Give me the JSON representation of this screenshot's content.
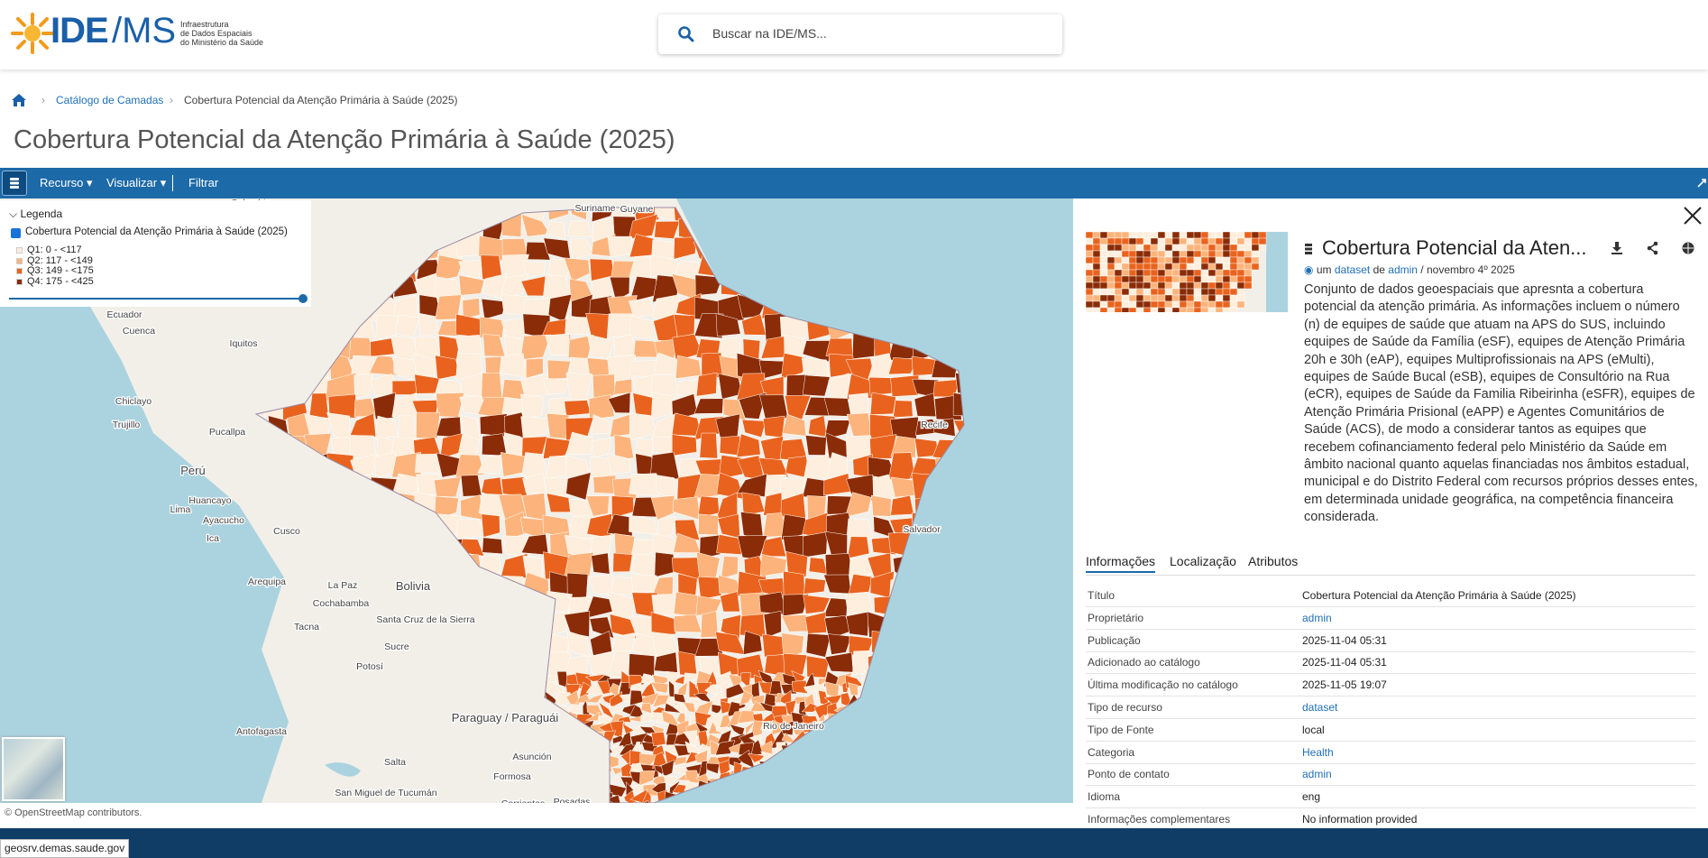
{
  "header": {
    "logo": {
      "main": "IDE",
      "suffix": "/MS",
      "subtitle": [
        "Infraestrutura",
        "de Dados Espaciais",
        "do Ministério da Saúde"
      ]
    },
    "search_placeholder": "Buscar na IDE/MS..."
  },
  "breadcrumb": [
    "Catálogo de Camadas",
    "Cobertura Potencial da Atenção Primária à Saúde (2025)"
  ],
  "page_title": "Cobertura Potencial da Atenção Primária à Saúde (2025)",
  "toolbar": [
    "Recurso",
    "Visualizar",
    "Filtrar"
  ],
  "legend": {
    "title": "Legenda",
    "layer": "Cobertura Potencial da Atenção Primária à Saúde (2025)",
    "classes": [
      {
        "label": "Q1: 0 - <117",
        "color": "#fdeedd"
      },
      {
        "label": "Q2: 117 - <149",
        "color": "#fcb47c"
      },
      {
        "label": "Q3: 149 - <175",
        "color": "#e9631e"
      },
      {
        "label": "Q4: 175 - <425",
        "color": "#8a2c07"
      }
    ]
  },
  "map": {
    "labels": [
      "Colombia",
      "Suriname",
      "Guyane",
      "Ecuador",
      "Cuenca",
      "Iquitos",
      "Chiclayo",
      "Trujillo",
      "Pucallpa",
      "Perú",
      "Huancayo",
      "Lima",
      "Ayacucho",
      "Ica",
      "Cusco",
      "Arequipa",
      "Bolivia",
      "La Paz",
      "Cochabamba",
      "Santa Cruz de la Sierra",
      "Tacna",
      "Sucre",
      "Potosí",
      "Antofagasta",
      "Paraguay / Paraguái",
      "Asunción",
      "Salta",
      "San Miguel de Tucumán",
      "Formosa",
      "Corrientes",
      "Posadas",
      "Rio de Janeiro",
      "Salvador",
      "Recife"
    ],
    "attribution": "© OpenStreetMap contributors."
  },
  "panel": {
    "title": "Cobertura Potencial da Aten...",
    "meta": {
      "prefix": "um",
      "type": "dataset",
      "by": "de",
      "owner": "admin",
      "date": "/ novembro 4º 2025"
    },
    "description": "Conjunto de dados geoespaciais que apresnta a cobertura potencial da atenção primária. As informações incluem o número (n) de equipes de saúde que atuam na APS do SUS, incluindo equipes de Saúde da Família (eSF), equipes de Atenção Primária 20h e 30h (eAP), equipes Multiprofissionais na APS (eMulti), equipes de Saúde Bucal (eSB), equipes de Consultório na Rua (eCR), equipes de Saúde da Familia Ribeirinha (eSFR), equipes de Atenção Primária Prisional (eAPP) e Agentes Comunitários de Saúde (ACS), de modo a considerar tantos as equipes que recebem cofinanciamento federal pelo Ministério da Saúde em âmbito nacional quanto aquelas financiadas nos âmbitos estadual, municipal e do Distrito Federal com recursos próprios desses entes, em determinada unidade geográfica, na competência financeira considerada.",
    "tabs": [
      "Informações",
      "Localização",
      "Atributos"
    ],
    "rows": [
      [
        "Título",
        "Cobertura Potencial da Atenção Primária à Saúde (2025)"
      ],
      [
        "Proprietário",
        "admin"
      ],
      [
        "Publicação",
        "2025-11-04 05:31"
      ],
      [
        "Adicionado ao catálogo",
        "2025-11-04 05:31"
      ],
      [
        "Última modificação no catálogo",
        "2025-11-05 19:07"
      ],
      [
        "Tipo de recurso",
        "dataset"
      ],
      [
        "Tipo de Fonte",
        "local"
      ],
      [
        "Categoria",
        "Health"
      ],
      [
        "Ponto de contato",
        "admin"
      ],
      [
        "Idioma",
        "eng"
      ],
      [
        "Informações complementares",
        "No information provided"
      ]
    ]
  },
  "status_url": "geosrv.demas.saude.gov"
}
